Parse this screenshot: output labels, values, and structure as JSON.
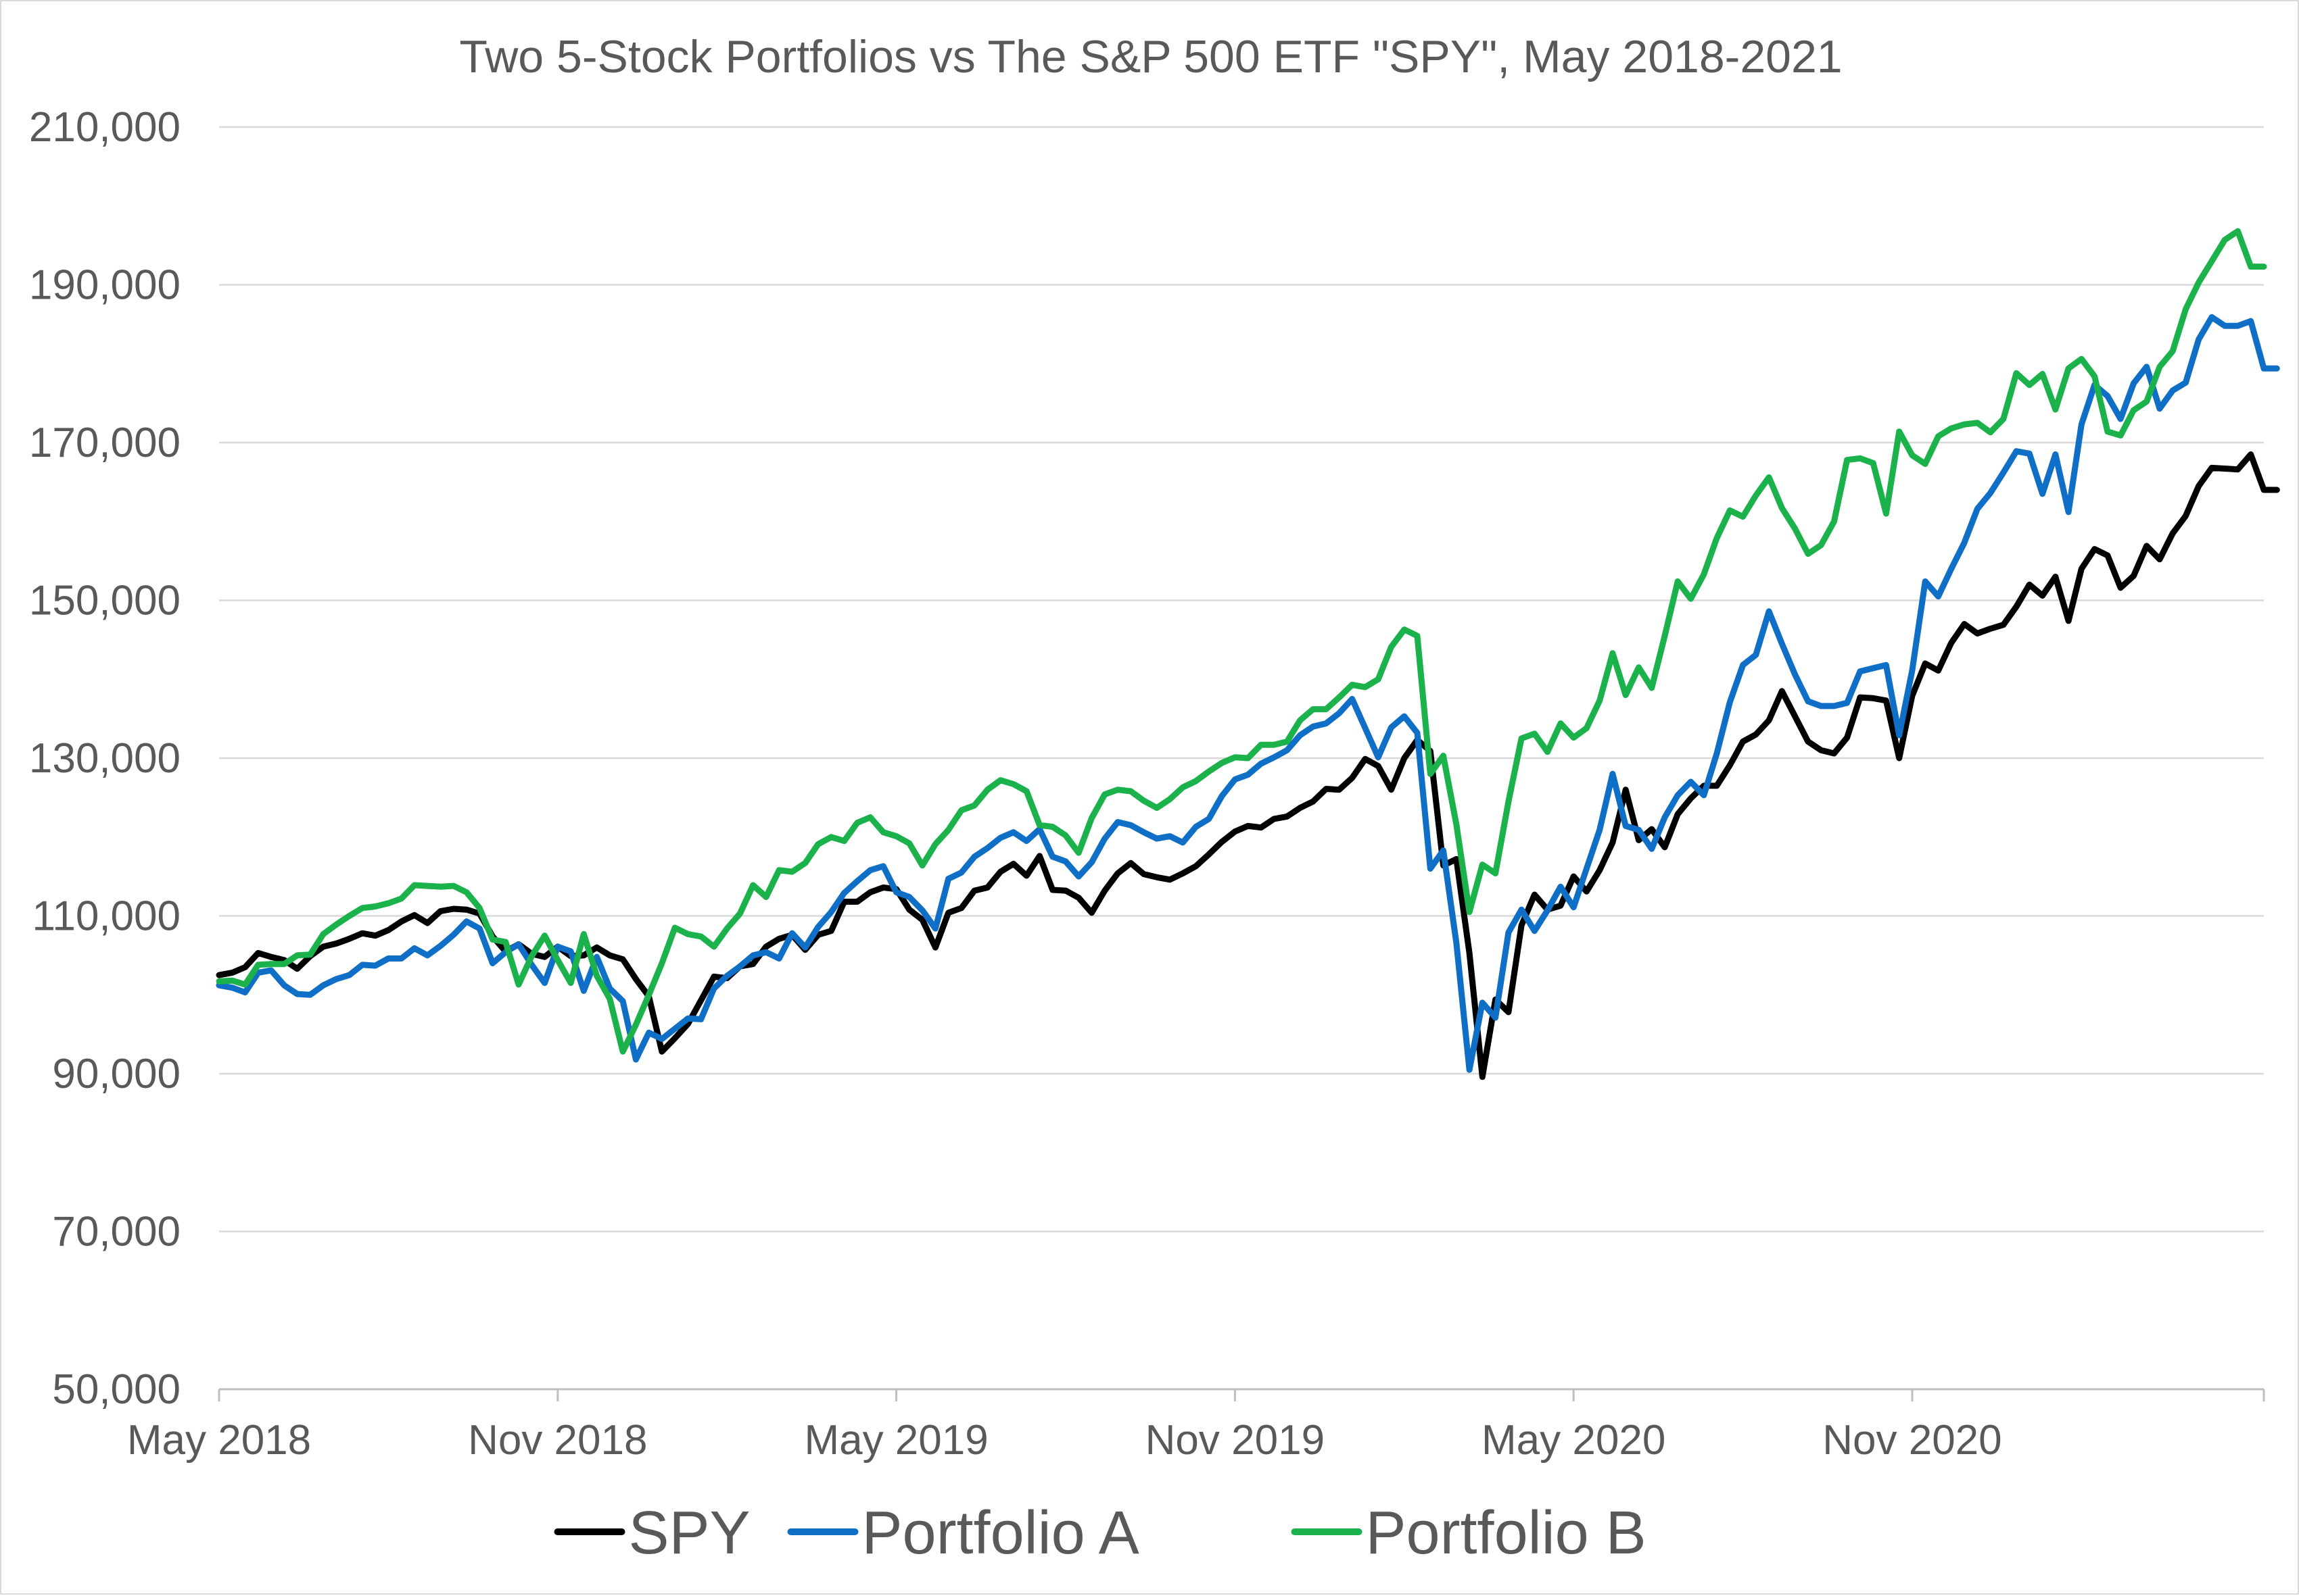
{
  "chart_data": {
    "type": "line",
    "title": "Two 5-Stock Portfolios vs The S&P 500 ETF \"SPY\", May 2018-2021",
    "xlabel": "",
    "ylabel": "",
    "x_start": "2018-05-04",
    "x_step_days": 7,
    "xlim": [
      "2018-05-04",
      "2021-05-07"
    ],
    "ylim": [
      50000,
      210000
    ],
    "y_ticks": [
      50000,
      70000,
      90000,
      110000,
      130000,
      150000,
      170000,
      190000,
      210000
    ],
    "y_tick_labels": [
      "50,000",
      "70,000",
      "90,000",
      "110,000",
      "130,000",
      "150,000",
      "170,000",
      "190,000",
      "210,000"
    ],
    "x_tick_dates": [
      "2018-05-04",
      "2018-11-02",
      "2019-05-03",
      "2019-11-01",
      "2020-05-01",
      "2020-10-30"
    ],
    "x_tick_labels": [
      "May 2018",
      "Nov 2018",
      "May 2019",
      "Nov 2019",
      "May 2020",
      "Nov 2020"
    ],
    "grid": "horizontal",
    "legend_position": "bottom",
    "series": [
      {
        "name": "SPY",
        "color": "#000000",
        "values": [
          102500,
          102800,
          103500,
          105300,
          104800,
          104400,
          103300,
          104900,
          106100,
          106500,
          107100,
          107800,
          107500,
          108200,
          109300,
          110100,
          109100,
          110600,
          110900,
          110800,
          110300,
          107400,
          105500,
          106400,
          105200,
          104800,
          106100,
          104900,
          105000,
          106000,
          105000,
          104500,
          102000,
          99800,
          92800,
          94500,
          96300,
          99300,
          102300,
          102100,
          103600,
          103900,
          106100,
          107100,
          107600,
          105700,
          107600,
          108100,
          111800,
          111800,
          113000,
          113600,
          113400,
          110800,
          109500,
          106000,
          110400,
          111000,
          113200,
          113600,
          115600,
          116600,
          115100,
          117600,
          113300,
          113200,
          112300,
          110400,
          113200,
          115400,
          116700,
          115300,
          114900,
          114600,
          115400,
          116300,
          117800,
          119400,
          120700,
          121400,
          121200,
          122300,
          122600,
          123700,
          124500,
          126100,
          126000,
          127500,
          129900,
          129000,
          126000,
          130000,
          132300,
          130900,
          116400,
          117200,
          105300,
          89600,
          99400,
          97800,
          108800,
          112700,
          110800,
          111300,
          115000,
          113100,
          115800,
          119300,
          126000,
          119600,
          121000,
          118700,
          122900,
          124900,
          126500,
          126500,
          129100,
          132100,
          133000,
          134800,
          138500,
          135300,
          132100,
          131000,
          130600,
          132600,
          137700,
          137600,
          137300,
          130000,
          137900,
          142000,
          141100,
          144600,
          147000,
          145800,
          146400,
          146900,
          149200,
          152000,
          150600,
          153000,
          147400,
          154000,
          156500,
          155700,
          151600,
          153100,
          156900,
          155200,
          158500,
          160700,
          164500,
          166800,
          166700,
          166600,
          168500,
          164000,
          164000
        ]
      },
      {
        "name": "Portfolio A",
        "color": "#0f6fc6",
        "values": [
          101200,
          100900,
          100300,
          102800,
          103100,
          101200,
          100100,
          100000,
          101200,
          102000,
          102500,
          103800,
          103700,
          104600,
          104600,
          105900,
          105000,
          106200,
          107600,
          109300,
          108400,
          104000,
          105400,
          106400,
          103800,
          101500,
          106100,
          105500,
          100500,
          104800,
          100800,
          99200,
          91800,
          95200,
          94400,
          95700,
          97000,
          96900,
          100800,
          102400,
          103600,
          105000,
          105400,
          104600,
          107800,
          106000,
          108600,
          110500,
          112900,
          114400,
          115800,
          116300,
          113000,
          112400,
          110700,
          108400,
          114700,
          115500,
          117500,
          118600,
          119900,
          120600,
          119500,
          121000,
          117500,
          116900,
          115000,
          116800,
          119800,
          121900,
          121500,
          120600,
          119800,
          120100,
          119300,
          121300,
          122300,
          125200,
          127300,
          127900,
          129300,
          130100,
          131000,
          132900,
          134000,
          134400,
          135700,
          137500,
          133800,
          130100,
          133900,
          135300,
          133200,
          116000,
          118300,
          106600,
          90500,
          99000,
          97100,
          107900,
          110800,
          108100,
          110700,
          113700,
          111100,
          116000,
          120900,
          128000,
          121400,
          120900,
          118500,
          122500,
          125300,
          127000,
          125300,
          130600,
          137100,
          141800,
          143100,
          148600,
          144500,
          140600,
          137200,
          136600,
          136600,
          137000,
          141000,
          141400,
          141800,
          132900,
          141100,
          152400,
          150500,
          154000,
          157300,
          161600,
          163600,
          166200,
          168900,
          168600,
          163500,
          168500,
          161200,
          172300,
          177300,
          175900,
          173000,
          177500,
          179600,
          174300,
          176600,
          177600,
          183100,
          185900,
          184800,
          184800,
          185400,
          179400,
          179400
        ]
      },
      {
        "name": "Portfolio B",
        "color": "#1bb24b",
        "values": [
          101700,
          101800,
          101300,
          103800,
          103900,
          103900,
          105000,
          105100,
          107700,
          108900,
          110000,
          111000,
          111200,
          111600,
          112200,
          113900,
          113800,
          113700,
          113800,
          113000,
          111000,
          107000,
          106700,
          101300,
          104900,
          107500,
          104400,
          101500,
          107700,
          102400,
          99500,
          92800,
          96200,
          100000,
          104000,
          108500,
          107700,
          107400,
          106100,
          108400,
          110300,
          113900,
          112400,
          115800,
          115600,
          116700,
          119100,
          120000,
          119500,
          121800,
          122500,
          120600,
          120100,
          119200,
          116400,
          119100,
          120900,
          123400,
          124000,
          126000,
          127200,
          126700,
          125800,
          121500,
          121300,
          120200,
          118000,
          122400,
          125400,
          126000,
          125800,
          124600,
          123700,
          124800,
          126300,
          127100,
          128300,
          129400,
          130100,
          130000,
          131700,
          131700,
          132100,
          134800,
          136200,
          136200,
          137700,
          139300,
          139000,
          140000,
          144100,
          146300,
          145500,
          128000,
          130300,
          121600,
          110500,
          116500,
          115400,
          124500,
          132500,
          133100,
          130800,
          134400,
          132600,
          133800,
          137300,
          143300,
          138000,
          141500,
          138900,
          145500,
          152400,
          150200,
          153300,
          157900,
          161400,
          160600,
          163300,
          165600,
          161700,
          159100,
          155900,
          157000,
          160000,
          167800,
          168000,
          167400,
          161000,
          171400,
          168400,
          167300,
          170800,
          171800,
          172300,
          172500,
          171300,
          173000,
          178800,
          177300,
          178700,
          174200,
          179400,
          180600,
          178400,
          171400,
          170900,
          174100,
          175200,
          179600,
          181600,
          186900,
          190300,
          193000,
          195700,
          196800,
          192300,
          192300
        ]
      }
    ]
  }
}
